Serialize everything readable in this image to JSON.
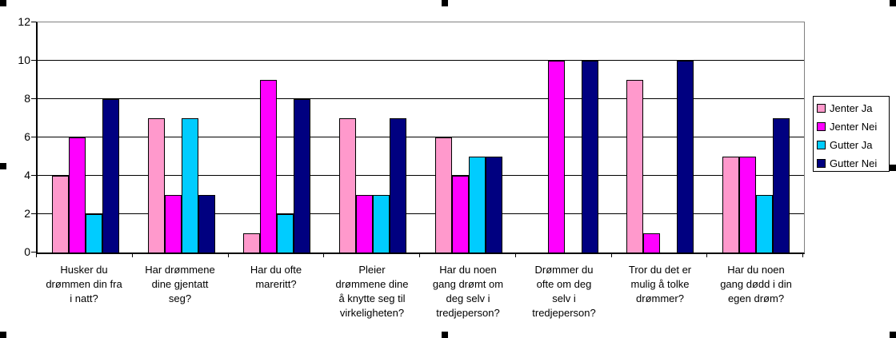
{
  "chart_data": {
    "type": "bar",
    "title": "",
    "xlabel": "",
    "ylabel": "",
    "ylim": [
      0,
      12
    ],
    "y_ticks": [
      0,
      2,
      4,
      6,
      8,
      10,
      12
    ],
    "grid": true,
    "legend_position": "right",
    "categories": [
      "Husker du\ndrømmen din fra\ni natt?",
      "Har drømmene\ndine gjentatt\nseg?",
      "Har du ofte\nmareritt?",
      "Pleier\ndrømmene dine\nå knytte seg til\nvirkeligheten?",
      "Har du noen\ngang drømt om\ndeg selv i\ntredjeperson?",
      "Drømmer du\nofte om deg\nselv i\ntredjeperson?",
      "Tror du det er\nmulig å tolke\ndrømmer?",
      "Har du noen\ngang dødd i din\negen drøm?"
    ],
    "series": [
      {
        "name": "Jenter Ja",
        "color": "#FF99CC",
        "values": [
          4,
          7,
          1,
          7,
          6,
          0,
          9,
          5
        ]
      },
      {
        "name": "Jenter Nei",
        "color": "#FF00FF",
        "values": [
          6,
          3,
          9,
          3,
          4,
          10,
          1,
          5
        ]
      },
      {
        "name": "Gutter Ja",
        "color": "#00CCFF",
        "values": [
          2,
          7,
          2,
          3,
          5,
          0,
          0,
          3
        ]
      },
      {
        "name": "Gutter Nei",
        "color": "#000080",
        "values": [
          8,
          3,
          8,
          7,
          5,
          10,
          10,
          7
        ]
      }
    ]
  },
  "colors": {
    "background": "#FFFFFF",
    "plot_border": "#808080",
    "axis": "#000000",
    "gridline": "#000000",
    "selection_handle": "#000000"
  },
  "selection_handles": [
    {
      "pos": "top-left"
    },
    {
      "pos": "top-middle"
    },
    {
      "pos": "top-right"
    },
    {
      "pos": "middle-left"
    },
    {
      "pos": "middle-right"
    },
    {
      "pos": "bottom-left"
    },
    {
      "pos": "bottom-middle"
    },
    {
      "pos": "bottom-right"
    }
  ]
}
